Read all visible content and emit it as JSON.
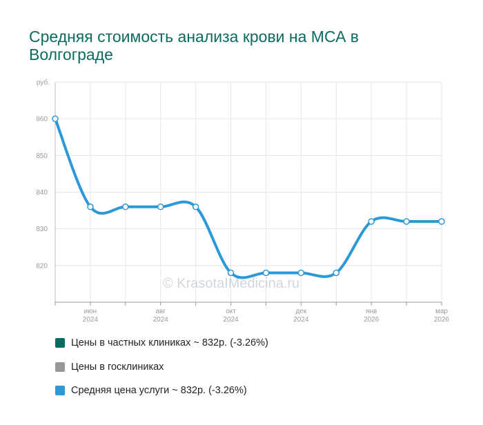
{
  "title": "Средняя стоимость анализа крови на МСА в Волгограде",
  "watermark": "© KrasotaIMedicina.ru",
  "chart_data": {
    "type": "line",
    "yunit": "руб.",
    "ylim": [
      810,
      870
    ],
    "yticks": [
      820,
      830,
      840,
      850,
      860
    ],
    "grid": true,
    "x_ticks": [
      {
        "m": "июн",
        "y": "2024"
      },
      {
        "m": "авг",
        "y": "2024"
      },
      {
        "m": "окт",
        "y": "2024"
      },
      {
        "m": "дек",
        "y": "2024"
      },
      {
        "m": "янв",
        "y": "2026"
      },
      {
        "m": "мар",
        "y": "2026"
      }
    ],
    "series": [
      {
        "name": "Средняя цена услуги ~ 832р. (-3.26%)",
        "color": "#2b98d8",
        "values": [
          860,
          836,
          836,
          836,
          836,
          818,
          818,
          818,
          818,
          832,
          832,
          832
        ]
      }
    ],
    "legend": {
      "position": "bottom",
      "items": [
        {
          "label": "Цены в частных клиниках ~ 832р. (-3.26%)",
          "color": "#0b6b61"
        },
        {
          "label": "Цены в госклиниках",
          "color": "#999999"
        },
        {
          "label": "Средняя цена услуги ~ 832р. (-3.26%)",
          "color": "#2b98d8"
        }
      ]
    }
  }
}
